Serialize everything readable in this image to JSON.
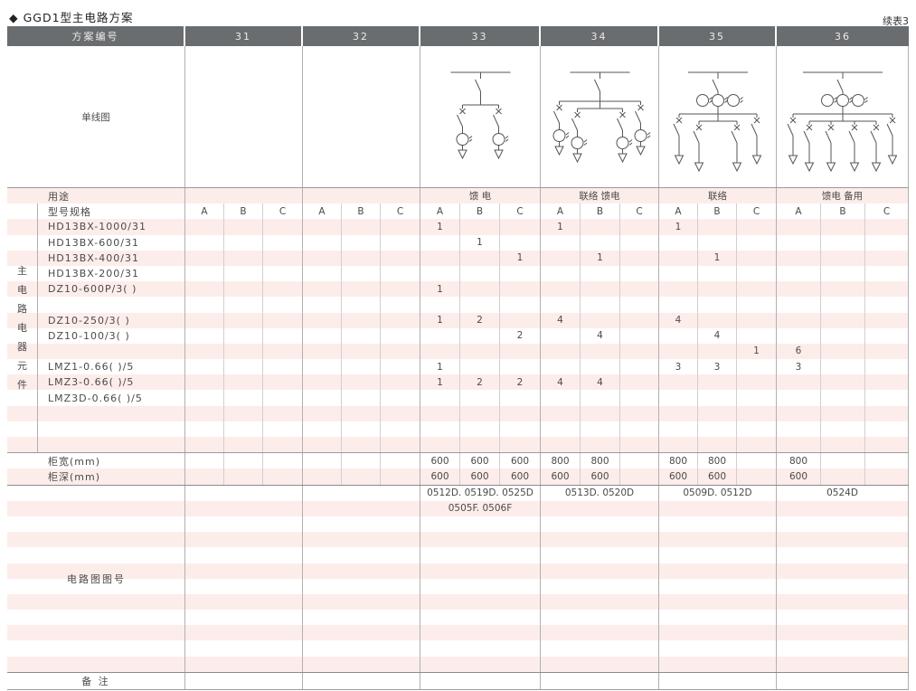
{
  "page": {
    "title": "◆ GGD1型主电路方案",
    "continuation": "续表3"
  },
  "colors": {
    "header_bg": "#696d70",
    "stripe_pink": "#fdedea",
    "grid_line": "#b0b0b0"
  },
  "table": {
    "header": {
      "label": "方案编号",
      "columns": [
        "31",
        "32",
        "33",
        "34",
        "35",
        "36"
      ]
    },
    "single_line_row": {
      "label": "单线图",
      "diagrams": {
        "31": null,
        "32": null,
        "33": {
          "branches": 2,
          "branch_meters": true,
          "main_cts": 0
        },
        "34": {
          "branches": 4,
          "branch_meters": true,
          "main_cts": 0
        },
        "35": {
          "branches": 4,
          "branch_meters": false,
          "main_cts": 3
        },
        "36": {
          "branches": 6,
          "branch_meters": false,
          "main_cts": 3
        }
      }
    },
    "usage_row": {
      "label": "用途",
      "values": [
        "",
        "",
        "馈 电",
        "联络 馈电",
        "联络",
        "馈电 备用"
      ]
    },
    "spec_header_row": {
      "label": "型号规格",
      "sub_columns": [
        "A",
        "B",
        "C"
      ]
    },
    "left_strip_label": "主电路电器元件",
    "component_rows": [
      {
        "name": "HD13BX-1000/31",
        "values": [
          "",
          "",
          "",
          "",
          "",
          "",
          "1",
          "",
          "",
          "1",
          "",
          "",
          "1",
          "",
          "",
          "",
          "",
          ""
        ]
      },
      {
        "name": "HD13BX-600/31",
        "values": [
          "",
          "",
          "",
          "",
          "",
          "",
          "",
          "1",
          "",
          "",
          "",
          "",
          "",
          "",
          "",
          "",
          "",
          ""
        ]
      },
      {
        "name": "HD13BX-400/31",
        "values": [
          "",
          "",
          "",
          "",
          "",
          "",
          "",
          "",
          "1",
          "",
          "1",
          "",
          "",
          "1",
          "",
          "",
          "",
          ""
        ]
      },
      {
        "name": "HD13BX-200/31",
        "values": [
          "",
          "",
          "",
          "",
          "",
          "",
          "",
          "",
          "",
          "",
          "",
          "",
          "",
          "",
          "",
          "",
          "",
          ""
        ]
      },
      {
        "name": "DZ10-600P/3( )",
        "values": [
          "",
          "",
          "",
          "",
          "",
          "",
          "1",
          "",
          "",
          "",
          "",
          "",
          "",
          "",
          "",
          "",
          "",
          ""
        ]
      },
      {
        "name": "",
        "values": [
          "",
          "",
          "",
          "",
          "",
          "",
          "",
          "",
          "",
          "",
          "",
          "",
          "",
          "",
          "",
          "",
          "",
          ""
        ]
      },
      {
        "name": "DZ10-250/3( )",
        "values": [
          "",
          "",
          "",
          "",
          "",
          "",
          "1",
          "2",
          "",
          "4",
          "",
          "",
          "4",
          "",
          "",
          "",
          "",
          ""
        ]
      },
      {
        "name": "DZ10-100/3( )",
        "values": [
          "",
          "",
          "",
          "",
          "",
          "",
          "",
          "",
          "2",
          "",
          "4",
          "",
          "",
          "4",
          "",
          "",
          "",
          ""
        ]
      },
      {
        "name": "",
        "values": [
          "",
          "",
          "",
          "",
          "",
          "",
          "",
          "",
          "",
          "",
          "",
          "",
          "",
          "",
          "1",
          "6",
          "",
          ""
        ]
      },
      {
        "name": "LMZ1-0.66( )/5",
        "values": [
          "",
          "",
          "",
          "",
          "",
          "",
          "1",
          "",
          "",
          "",
          "",
          "",
          "3",
          "3",
          "",
          "3",
          "",
          ""
        ]
      },
      {
        "name": "LMZ3-0.66( )/5",
        "values": [
          "",
          "",
          "",
          "",
          "",
          "",
          "1",
          "2",
          "2",
          "4",
          "4",
          "",
          "",
          "",
          "",
          "",
          "",
          ""
        ]
      },
      {
        "name": "LMZ3D-0.66( )/5",
        "values": [
          "",
          "",
          "",
          "",
          "",
          "",
          "",
          "",
          "",
          "",
          "",
          "",
          "",
          "",
          "",
          "",
          "",
          ""
        ]
      },
      {
        "name": "",
        "values": [
          "",
          "",
          "",
          "",
          "",
          "",
          "",
          "",
          "",
          "",
          "",
          "",
          "",
          "",
          "",
          "",
          "",
          ""
        ]
      },
      {
        "name": "",
        "values": [
          "",
          "",
          "",
          "",
          "",
          "",
          "",
          "",
          "",
          "",
          "",
          "",
          "",
          "",
          "",
          "",
          "",
          ""
        ]
      },
      {
        "name": "",
        "values": [
          "",
          "",
          "",
          "",
          "",
          "",
          "",
          "",
          "",
          "",
          "",
          "",
          "",
          "",
          "",
          "",
          "",
          ""
        ]
      }
    ],
    "size_rows": [
      {
        "name": "柜宽(mm)",
        "values": [
          "",
          "",
          "",
          "",
          "",
          "",
          "600",
          "600",
          "600",
          "800",
          "800",
          "",
          "800",
          "800",
          "",
          "800",
          "",
          ""
        ]
      },
      {
        "name": "柜深(mm)",
        "values": [
          "",
          "",
          "",
          "",
          "",
          "",
          "600",
          "600",
          "600",
          "600",
          "600",
          "",
          "600",
          "600",
          "",
          "600",
          "",
          ""
        ]
      }
    ],
    "circuit_section": {
      "label": "电路图图号",
      "rows": [
        [
          "",
          "",
          "0512D. 0519D. 0525D",
          "0513D. 0520D",
          "0509D. 0512D",
          "0524D"
        ],
        [
          "",
          "",
          "0505F. 0506F",
          "",
          "",
          ""
        ],
        [
          "",
          "",
          "",
          "",
          "",
          ""
        ],
        [
          "",
          "",
          "",
          "",
          "",
          ""
        ],
        [
          "",
          "",
          "",
          "",
          "",
          ""
        ],
        [
          "",
          "",
          "",
          "",
          "",
          ""
        ],
        [
          "",
          "",
          "",
          "",
          "",
          ""
        ],
        [
          "",
          "",
          "",
          "",
          "",
          ""
        ],
        [
          "",
          "",
          "",
          "",
          "",
          ""
        ],
        [
          "",
          "",
          "",
          "",
          "",
          ""
        ],
        [
          "",
          "",
          "",
          "",
          "",
          ""
        ],
        [
          "",
          "",
          "",
          "",
          "",
          ""
        ]
      ]
    },
    "remark_row": {
      "label": "备 注"
    }
  }
}
